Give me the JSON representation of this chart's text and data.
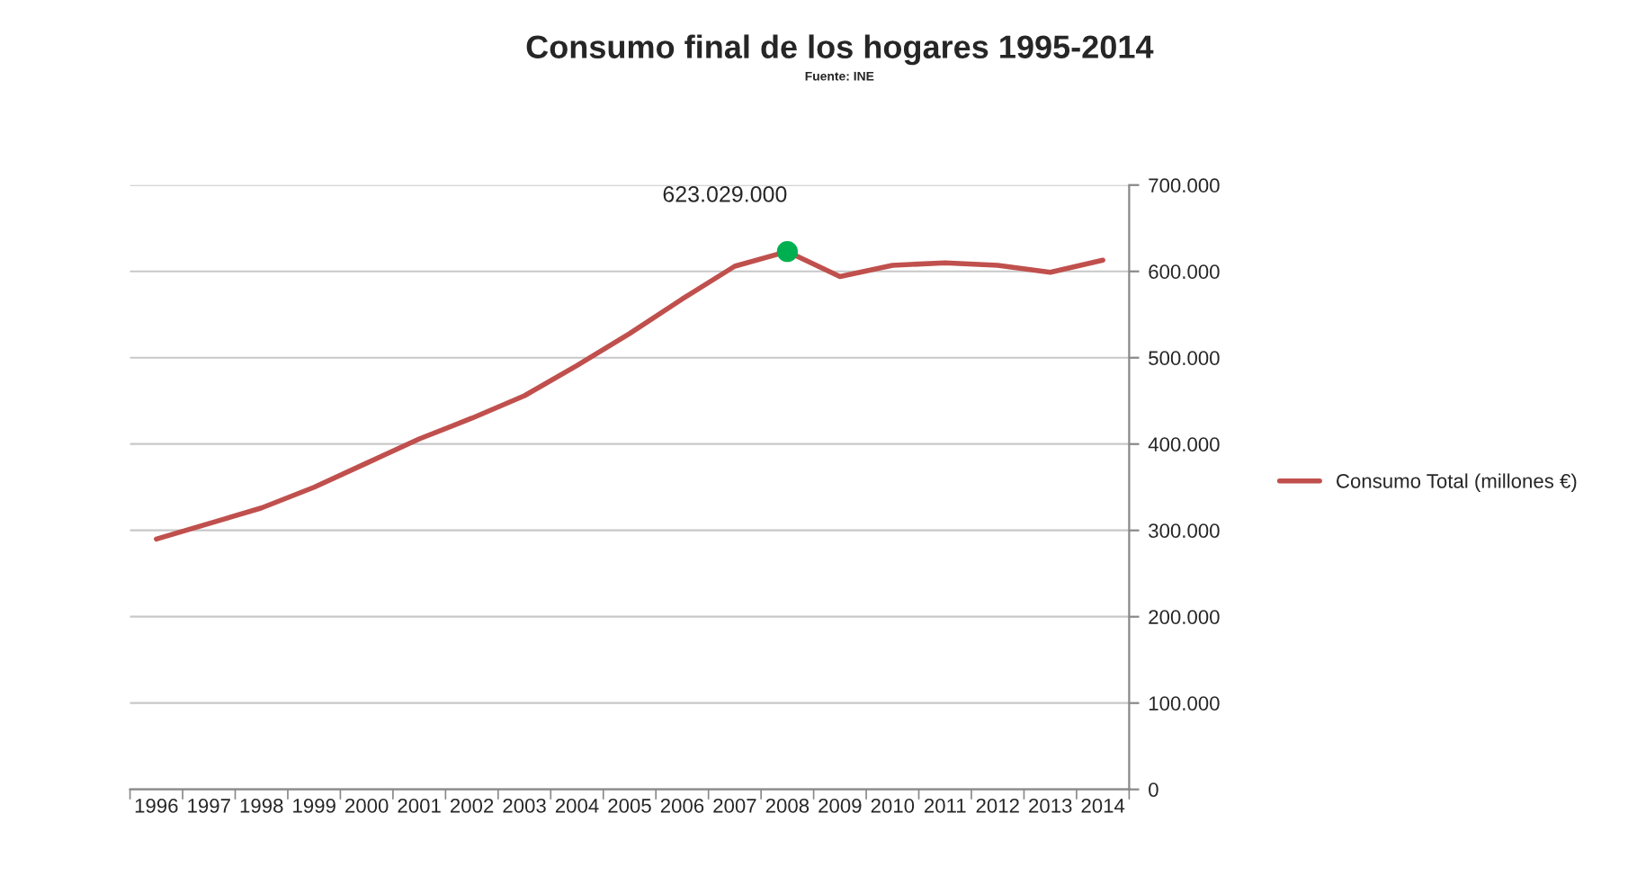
{
  "chart_data": {
    "type": "line",
    "title": "Consumo final de los hogares 1995-2014",
    "subtitle": "Fuente: INE",
    "categories": [
      "1996",
      "1997",
      "1998",
      "1999",
      "2000",
      "2001",
      "2002",
      "2003",
      "2004",
      "2005",
      "2006",
      "2007",
      "2008",
      "2009",
      "2010",
      "2011",
      "2012",
      "2013",
      "2014"
    ],
    "series": [
      {
        "name": "Consumo Total (millones €)",
        "color": "#c0504d",
        "values": [
          290000,
          308000,
          326000,
          350000,
          378000,
          406000,
          430000,
          456000,
          491000,
          528000,
          568000,
          606000,
          623029,
          594000,
          607000,
          610000,
          607000,
          599000,
          613000
        ]
      },
      {
        "type": "scatter",
        "color": "#00b050",
        "marker": "circle",
        "values": [
          null,
          null,
          null,
          null,
          null,
          null,
          null,
          null,
          null,
          null,
          null,
          null,
          623029,
          null,
          null,
          null,
          null,
          null,
          null
        ]
      }
    ],
    "annotations": [
      {
        "text": "623.029.000",
        "x": "2008",
        "y": 623029
      }
    ],
    "ylim": [
      0,
      700000
    ],
    "yticks": [
      {
        "value": 0,
        "label": "0"
      },
      {
        "value": 100000,
        "label": "100.000"
      },
      {
        "value": 200000,
        "label": "200.000"
      },
      {
        "value": 300000,
        "label": "300.000"
      },
      {
        "value": 400000,
        "label": "400.000"
      },
      {
        "value": 500000,
        "label": "500.000"
      },
      {
        "value": 600000,
        "label": "600.000"
      },
      {
        "value": 700000,
        "label": "700.000"
      }
    ],
    "grid": "y",
    "legend": "right",
    "marker": "none",
    "line_style": "solid"
  }
}
